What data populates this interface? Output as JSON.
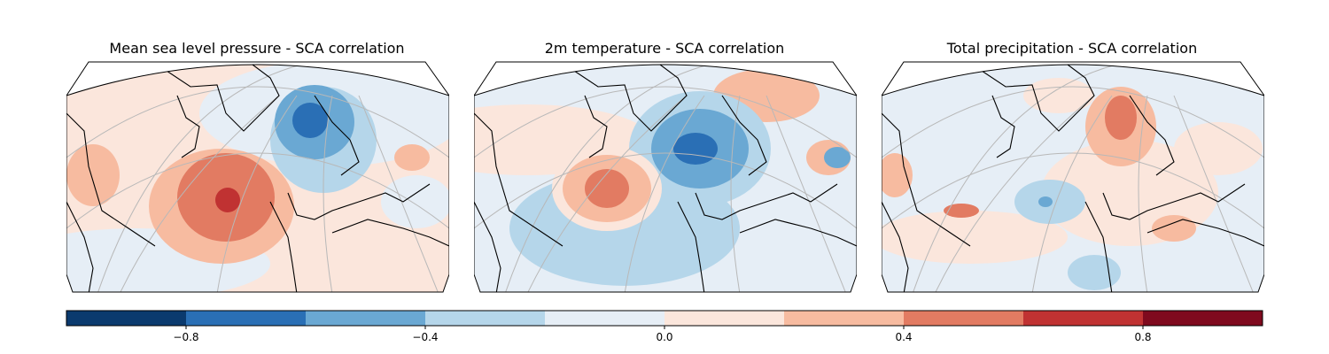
{
  "panels": [
    {
      "title": "Mean sea level pressure - SCA correlation"
    },
    {
      "title": "2m temperature - SCA correlation"
    },
    {
      "title": "Total precipitation - SCA correlation"
    }
  ],
  "colorbar": {
    "ticks": [
      {
        "value": -0.8,
        "label": "−0.8"
      },
      {
        "value": -0.4,
        "label": "−0.4"
      },
      {
        "value": 0.0,
        "label": "0.0"
      },
      {
        "value": 0.4,
        "label": "0.4"
      },
      {
        "value": 0.8,
        "label": "0.8"
      }
    ],
    "colors": [
      "#0b3a6e",
      "#2a6fb5",
      "#6aa8d3",
      "#b5d6ea",
      "#e6eef6",
      "#fbe6dc",
      "#f7bba0",
      "#e27b62",
      "#c03232",
      "#7f0a1e"
    ]
  }
}
